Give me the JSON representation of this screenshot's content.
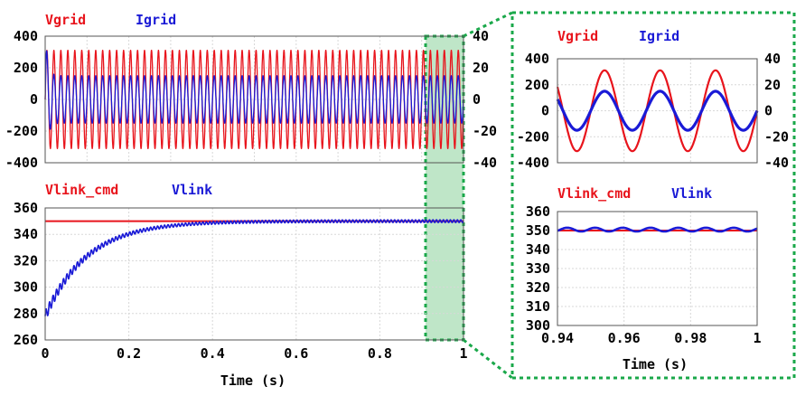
{
  "colors": {
    "red": "#e8141c",
    "blue": "#1a1ad6",
    "zoom_border": "#1aa84a",
    "zoom_fill": "#bfe6c8"
  },
  "chart_data": [
    {
      "type": "line",
      "legend": [
        {
          "name": "Vgrid",
          "color": "#e8141c"
        },
        {
          "name": "Igrid",
          "color": "#1a1ad6"
        }
      ],
      "xlim": [
        0,
        1
      ],
      "ylim_left": [
        -400,
        400
      ],
      "ylim_right": [
        -40,
        40
      ],
      "yticks_left": [
        "400",
        "200",
        "0",
        "-200",
        "-400"
      ],
      "yticks_right": [
        "40",
        "20",
        "0",
        "-20",
        "-40"
      ],
      "series": [
        {
          "name": "Vgrid",
          "amplitude": 311,
          "frequency_hz": 60,
          "axis": "left"
        },
        {
          "name": "Igrid",
          "amplitude": 15,
          "frequency_hz": 60,
          "axis": "right",
          "startup_peak": 45
        }
      ]
    },
    {
      "type": "line",
      "legend": [
        {
          "name": "Vlink_cmd",
          "color": "#e8141c"
        },
        {
          "name": "Vlink",
          "color": "#1a1ad6"
        }
      ],
      "xlim": [
        0,
        1
      ],
      "ylim": [
        260,
        360
      ],
      "yticks": [
        "360",
        "340",
        "320",
        "300",
        "280",
        "260"
      ],
      "xticks": [
        "0",
        "0.2",
        "0.4",
        "0.6",
        "0.8",
        "1"
      ],
      "xlabel": "Time (s)",
      "series": [
        {
          "name": "Vlink_cmd",
          "constant": 350
        },
        {
          "name": "Vlink",
          "start": 278,
          "final": 350,
          "time_constant_s": 0.1,
          "ripple": 1
        }
      ]
    },
    {
      "type": "line",
      "legend": [
        {
          "name": "Vgrid",
          "color": "#e8141c"
        },
        {
          "name": "Igrid",
          "color": "#1a1ad6"
        }
      ],
      "xlim": [
        0.94,
        1
      ],
      "ylim_left": [
        -400,
        400
      ],
      "ylim_right": [
        -40,
        40
      ],
      "yticks_left": [
        "400",
        "200",
        "0",
        "-200",
        "-400"
      ],
      "yticks_right": [
        "40",
        "20",
        "0",
        "-20",
        "-40"
      ],
      "series": [
        {
          "name": "Vgrid",
          "amplitude": 311,
          "frequency_hz": 60,
          "axis": "left"
        },
        {
          "name": "Igrid",
          "amplitude": 15,
          "frequency_hz": 60,
          "axis": "right"
        }
      ]
    },
    {
      "type": "line",
      "legend": [
        {
          "name": "Vlink_cmd",
          "color": "#e8141c"
        },
        {
          "name": "Vlink",
          "color": "#1a1ad6"
        }
      ],
      "xlim": [
        0.94,
        1
      ],
      "ylim": [
        300,
        360
      ],
      "yticks": [
        "360",
        "350",
        "340",
        "330",
        "320",
        "310",
        "300"
      ],
      "xticks": [
        "0.94",
        "0.96",
        "0.98",
        "1"
      ],
      "xlabel": "Time (s)",
      "series": [
        {
          "name": "Vlink_cmd",
          "constant": 350
        },
        {
          "name": "Vlink",
          "mean": 350.5,
          "ripple": 1,
          "frequency_hz": 120
        }
      ]
    }
  ]
}
